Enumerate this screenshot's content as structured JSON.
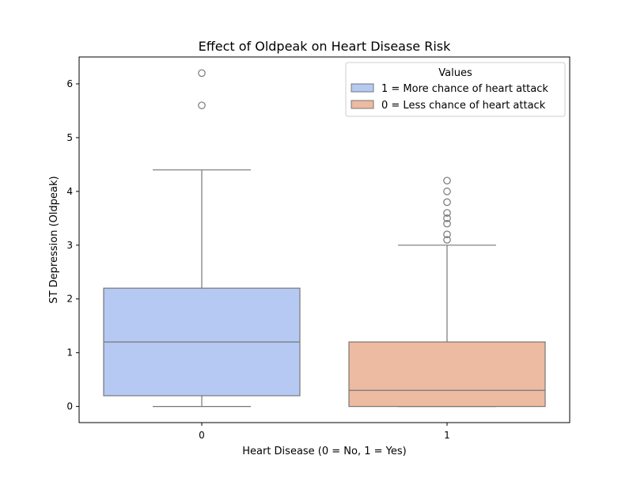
{
  "chart_data": {
    "type": "box",
    "title": "Effect of Oldpeak on Heart Disease Risk",
    "xlabel": "Heart Disease (0 = No, 1 = Yes)",
    "ylabel": "ST Depression (Oldpeak)",
    "categories": [
      "0",
      "1"
    ],
    "ylim": [
      -0.3,
      6.5
    ],
    "yticks": [
      0,
      1,
      2,
      3,
      4,
      5,
      6
    ],
    "grid": false,
    "legend_title": "Values",
    "legend_position": "top-right",
    "legend": [
      {
        "label": "1 = More chance of heart attack",
        "color": "#b5c9f3"
      },
      {
        "label": "0 = Less chance of heart attack",
        "color": "#edbaa2"
      }
    ],
    "boxes": [
      {
        "category": "0",
        "color": "#b5c9f3",
        "whisker_low": 0.0,
        "q1": 0.2,
        "median": 1.2,
        "q3": 2.2,
        "whisker_high": 4.4,
        "outliers": [
          5.6,
          6.2
        ]
      },
      {
        "category": "1",
        "color": "#edbaa2",
        "whisker_low": 0.0,
        "q1": 0.0,
        "median": 0.3,
        "q3": 1.2,
        "whisker_high": 3.0,
        "outliers": [
          3.1,
          3.2,
          3.4,
          3.5,
          3.6,
          3.8,
          4.0,
          4.2
        ]
      }
    ]
  }
}
